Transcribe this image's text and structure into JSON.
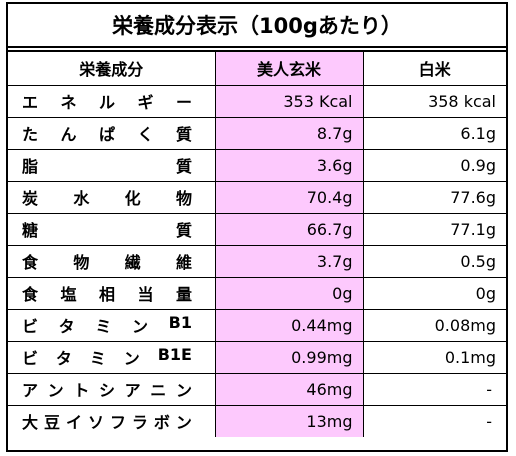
{
  "title": "栄養成分表示（100gあたり）",
  "table": {
    "header": [
      "栄養成分",
      "美人玄米",
      "白米"
    ],
    "rows": [
      [
        "エネルギー",
        "353 Kcal",
        "358 kcal"
      ],
      [
        "たんぱく質",
        "8.7g",
        "6.1g"
      ],
      [
        "脂質",
        "3.6g",
        "0.9g"
      ],
      [
        "炭水化物",
        "70.4g",
        "77.6g"
      ],
      [
        "糖質",
        "66.7g",
        "77.1g"
      ],
      [
        "食物繊維",
        "3.7g",
        "0.5g"
      ],
      [
        "食塩相当量",
        "0g",
        "0g"
      ],
      [
        "ビタミンB1",
        "0.44mg",
        "0.08mg"
      ],
      [
        "ビタミンB1E",
        "0.99mg",
        "0.1mg"
      ],
      [
        "アントシアニン",
        "46mg",
        "-"
      ],
      [
        "大豆イソフラボン",
        "13mg",
        "-"
      ]
    ]
  }
}
